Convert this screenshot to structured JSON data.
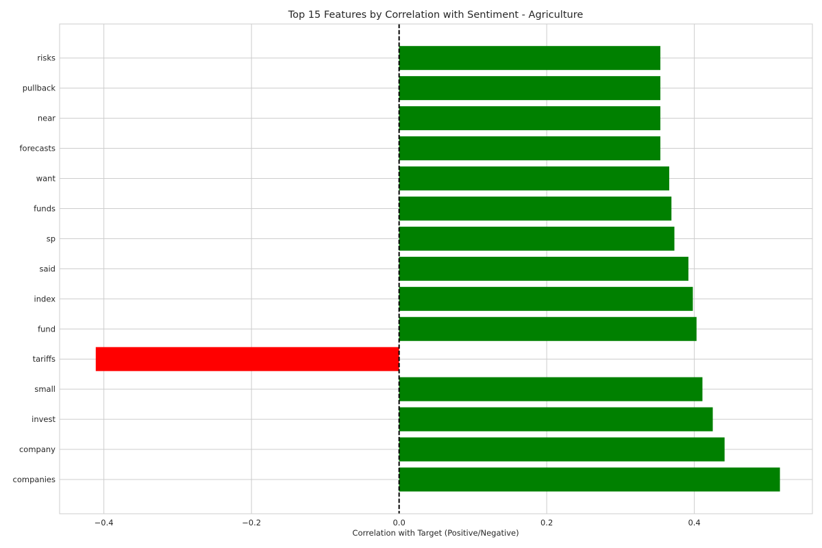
{
  "chart_data": {
    "type": "bar",
    "orientation": "horizontal",
    "title": "Top 15 Features by Correlation with Sentiment - Agriculture",
    "xlabel": "Correlation with Target (Positive/Negative)",
    "ylabel": "",
    "xlim": [
      -0.46,
      0.56
    ],
    "xticks": [
      -0.4,
      -0.2,
      0,
      0.2,
      0.4
    ],
    "xtick_labels": [
      "−0.4",
      "−0.2",
      "0.0",
      "0.2",
      "0.4"
    ],
    "grid": true,
    "reference_line": {
      "x": 0,
      "style": "dashed",
      "color": "#000000"
    },
    "categories": [
      "companies",
      "company",
      "invest",
      "small",
      "tariffs",
      "fund",
      "index",
      "said",
      "sp",
      "funds",
      "want",
      "forecasts",
      "near",
      "pullback",
      "risks"
    ],
    "values": [
      0.516,
      0.441,
      0.425,
      0.411,
      -0.411,
      0.403,
      0.398,
      0.392,
      0.373,
      0.369,
      0.366,
      0.354,
      0.354,
      0.354,
      0.354
    ],
    "colors": {
      "positive": "#008000",
      "negative": "#ff0000"
    }
  }
}
